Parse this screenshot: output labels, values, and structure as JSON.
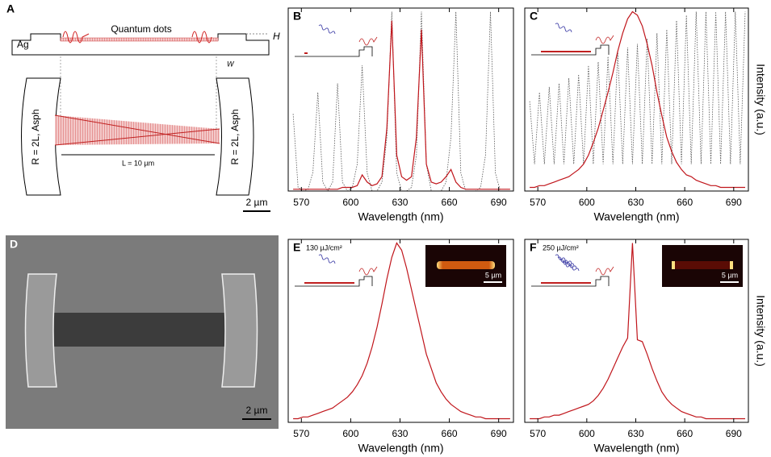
{
  "chart_data": [
    {
      "type": "line",
      "panel": "B",
      "x_label": "Wavelength (nm)",
      "x": [
        565,
        568,
        571,
        574,
        577,
        580,
        583,
        586,
        589,
        592,
        595,
        598,
        601,
        604,
        607,
        610,
        613,
        616,
        619,
        622,
        625,
        628,
        631,
        634,
        637,
        640,
        643,
        646,
        649,
        652,
        655,
        658,
        661,
        664,
        667,
        670,
        673,
        676,
        679,
        682,
        685,
        688,
        691,
        694,
        697
      ],
      "series": [
        {
          "color": "#555555",
          "style": "dotted",
          "values": [
            0.43,
            0.02,
            0,
            0.01,
            0.1,
            0.55,
            0.05,
            0,
            0.05,
            0.6,
            0.05,
            0,
            0.02,
            0.15,
            0.7,
            0.1,
            0,
            0,
            0.05,
            0.3,
            1.0,
            0.1,
            0,
            0,
            0.02,
            0.2,
            1.0,
            0.15,
            0,
            0,
            0,
            0.05,
            0.3,
            1.0,
            0.1,
            0,
            0,
            0,
            0.02,
            0.2,
            1.0,
            0.1,
            0,
            0,
            0
          ]
        },
        {
          "color": "#c0151b",
          "style": "solid",
          "values": [
            0.01,
            0.01,
            0.01,
            0.01,
            0.01,
            0.01,
            0.01,
            0.01,
            0.01,
            0.01,
            0.02,
            0.02,
            0.02,
            0.03,
            0.09,
            0.05,
            0.03,
            0.04,
            0.08,
            0.35,
            0.95,
            0.2,
            0.08,
            0.06,
            0.08,
            0.3,
            0.9,
            0.15,
            0.05,
            0.04,
            0.05,
            0.08,
            0.12,
            0.05,
            0.02,
            0.01,
            0.01,
            0.01,
            0.01,
            0.01,
            0.01,
            0.01,
            0.01,
            0.01,
            0.01
          ]
        }
      ],
      "xlim": [
        562,
        699
      ],
      "ylim": [
        0,
        1.02
      ],
      "xticks": [
        570,
        600,
        630,
        660,
        690
      ]
    },
    {
      "type": "line",
      "panel": "C",
      "x_label": "Wavelength (nm)",
      "y_label": "Intensity (a.u.)",
      "x": [
        565,
        568,
        571,
        574,
        577,
        580,
        583,
        586,
        589,
        592,
        595,
        598,
        601,
        604,
        607,
        610,
        613,
        616,
        619,
        622,
        625,
        628,
        631,
        634,
        637,
        640,
        643,
        646,
        649,
        652,
        655,
        658,
        661,
        664,
        667,
        670,
        673,
        676,
        679,
        682,
        685,
        688,
        691,
        694,
        697
      ],
      "series": [
        {
          "color": "#555555",
          "style": "dotted",
          "values": [
            0.5,
            0.15,
            0.55,
            0.15,
            0.58,
            0.15,
            0.6,
            0.15,
            0.63,
            0.15,
            0.65,
            0.15,
            0.7,
            0.15,
            0.72,
            0.15,
            0.75,
            0.15,
            0.78,
            0.15,
            0.8,
            0.15,
            0.82,
            0.15,
            0.85,
            0.15,
            0.88,
            0.15,
            0.9,
            0.15,
            0.95,
            0.15,
            0.98,
            0.15,
            1.0,
            0.15,
            1.0,
            0.15,
            1.0,
            0.15,
            1.0,
            0.15,
            1.0,
            0.15,
            1.0
          ]
        },
        {
          "color": "#c0151b",
          "style": "solid",
          "values": [
            0.02,
            0.02,
            0.03,
            0.03,
            0.04,
            0.05,
            0.06,
            0.07,
            0.08,
            0.1,
            0.12,
            0.15,
            0.2,
            0.27,
            0.35,
            0.45,
            0.55,
            0.66,
            0.78,
            0.88,
            0.96,
            1.0,
            0.98,
            0.92,
            0.82,
            0.7,
            0.55,
            0.42,
            0.3,
            0.22,
            0.16,
            0.12,
            0.09,
            0.08,
            0.06,
            0.05,
            0.04,
            0.03,
            0.03,
            0.02,
            0.02,
            0.02,
            0.02,
            0.02,
            0.02
          ]
        }
      ],
      "xlim": [
        562,
        699
      ],
      "ylim": [
        0,
        1.02
      ],
      "xticks": [
        570,
        600,
        630,
        660,
        690
      ]
    },
    {
      "type": "line",
      "panel": "E",
      "x_label": "Wavelength (nm)",
      "annotation": "130 µJ/cm²",
      "inset_scale": "5 µm",
      "x": [
        565,
        568,
        571,
        574,
        577,
        580,
        583,
        586,
        589,
        592,
        595,
        598,
        601,
        604,
        607,
        610,
        613,
        616,
        619,
        622,
        625,
        628,
        631,
        634,
        637,
        640,
        643,
        646,
        649,
        652,
        655,
        658,
        661,
        664,
        667,
        670,
        673,
        676,
        679,
        682,
        685,
        688,
        691,
        694,
        697
      ],
      "series": [
        {
          "color": "#c0151b",
          "style": "solid",
          "values": [
            0.02,
            0.02,
            0.03,
            0.03,
            0.04,
            0.05,
            0.06,
            0.07,
            0.08,
            0.1,
            0.12,
            0.14,
            0.17,
            0.21,
            0.26,
            0.33,
            0.42,
            0.53,
            0.66,
            0.8,
            0.92,
            1.0,
            0.96,
            0.86,
            0.74,
            0.62,
            0.5,
            0.38,
            0.3,
            0.22,
            0.17,
            0.13,
            0.1,
            0.08,
            0.06,
            0.05,
            0.04,
            0.03,
            0.03,
            0.02,
            0.02,
            0.02,
            0.02,
            0.02,
            0.02
          ]
        }
      ],
      "xlim": [
        562,
        699
      ],
      "ylim": [
        0,
        1.02
      ],
      "xticks": [
        570,
        600,
        630,
        660,
        690
      ]
    },
    {
      "type": "line",
      "panel": "F",
      "x_label": "Wavelength (nm)",
      "y_label": "Intensity (a.u.)",
      "annotation": "250 µJ/cm²",
      "inset_scale": "5 µm",
      "x": [
        565,
        568,
        571,
        574,
        577,
        580,
        583,
        586,
        589,
        592,
        595,
        598,
        601,
        604,
        607,
        610,
        613,
        616,
        619,
        622,
        625,
        628,
        631,
        634,
        637,
        640,
        643,
        646,
        649,
        652,
        655,
        658,
        661,
        664,
        667,
        670,
        673,
        676,
        679,
        682,
        685,
        688,
        691,
        694,
        697
      ],
      "series": [
        {
          "color": "#c0151b",
          "style": "solid",
          "values": [
            0.02,
            0.02,
            0.02,
            0.03,
            0.03,
            0.04,
            0.04,
            0.05,
            0.06,
            0.07,
            0.08,
            0.09,
            0.1,
            0.12,
            0.15,
            0.19,
            0.24,
            0.3,
            0.36,
            0.42,
            0.47,
            1.0,
            0.46,
            0.45,
            0.38,
            0.3,
            0.23,
            0.17,
            0.13,
            0.1,
            0.08,
            0.06,
            0.05,
            0.04,
            0.03,
            0.03,
            0.02,
            0.02,
            0.02,
            0.02,
            0.02,
            0.02,
            0.02,
            0.02,
            0.02
          ]
        }
      ],
      "xlim": [
        562,
        699
      ],
      "ylim": [
        0,
        1.02
      ],
      "xticks": [
        570,
        600,
        630,
        660,
        690
      ]
    }
  ],
  "panels": {
    "A": {
      "label": "A",
      "metal": "Ag",
      "emitter": "Quantum dots",
      "height": "H",
      "width": "W",
      "mirror_left": "R = 2L, Asph",
      "mirror_right": "R = 2L, Asph",
      "length": "L = 10 µm",
      "scale": "2 µm"
    },
    "D": {
      "label": "D",
      "scale": "2 µm"
    }
  }
}
